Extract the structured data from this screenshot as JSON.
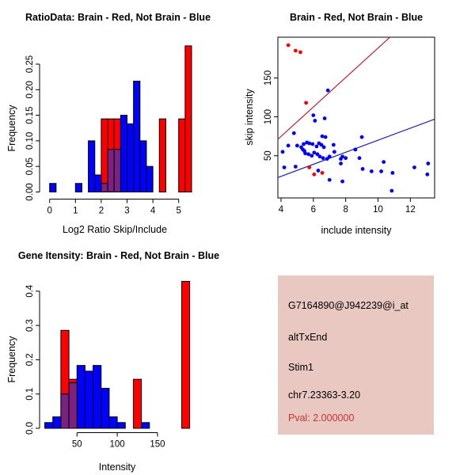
{
  "colors": {
    "red": "#FF0000",
    "blue": "#0000FF",
    "overlap_purple": "#7A2182",
    "red_line": "#C02030",
    "blue_line": "#2222AA",
    "axis": "#000000",
    "info_box_bg": "#EAC8C2",
    "pval_red": "#CC3333"
  },
  "chart_data": [
    {
      "id": "ratio_hist",
      "type": "bar",
      "title": "RatioData: Brain - Red, Not Brain - Blue",
      "xlabel": "Log2 Ratio Skip/Include",
      "ylabel": "Frequency",
      "xticks": [
        0,
        1,
        2,
        3,
        4,
        5
      ],
      "xtick_labels": [
        "0",
        "1",
        "2",
        "3",
        "4",
        "5"
      ],
      "yticks": [
        0,
        0.05,
        0.1,
        0.15,
        0.2,
        0.25
      ],
      "ytick_labels": [
        "0.00",
        "0.05",
        "0.10",
        "0.15",
        "0.20",
        "0.25"
      ],
      "xlim": [
        -0.2,
        5.7
      ],
      "ylim": [
        0,
        0.29
      ],
      "bin_width": 0.25,
      "legend": "Brain - Red, Not Brain - Blue",
      "series": [
        {
          "name": "Brain",
          "color": "red",
          "bars": [
            {
              "x": 2,
              "h": 0.1429
            },
            {
              "x": 2.25,
              "h": 0.1429
            },
            {
              "x": 2.5,
              "h": 0.1429
            },
            {
              "x": 4.25,
              "h": 0.1429
            },
            {
              "x": 5,
              "h": 0.1429
            },
            {
              "x": 5.25,
              "h": 0.2857
            }
          ]
        },
        {
          "name": "Not Brain",
          "color": "blue",
          "bars": [
            {
              "x": 0,
              "h": 0.0167
            },
            {
              "x": 1,
              "h": 0.0167
            },
            {
              "x": 1.5,
              "h": 0.1
            },
            {
              "x": 1.75,
              "h": 0.0333
            },
            {
              "x": 2,
              "h": 0.0167
            },
            {
              "x": 2.25,
              "h": 0.0833
            },
            {
              "x": 2.5,
              "h": 0.0833
            },
            {
              "x": 2.75,
              "h": 0.15
            },
            {
              "x": 3,
              "h": 0.1333
            },
            {
              "x": 3.25,
              "h": 0.2167
            },
            {
              "x": 3.5,
              "h": 0.1
            },
            {
              "x": 3.75,
              "h": 0.05
            }
          ]
        }
      ],
      "overlap_bars": [
        {
          "x": 2,
          "h": 0.0167
        },
        {
          "x": 2.25,
          "h": 0.0833
        },
        {
          "x": 2.5,
          "h": 0.0833
        }
      ]
    },
    {
      "id": "scatter",
      "type": "scatter",
      "title": "Brain - Red, Not Brain - Blue",
      "xlabel": "include intensity",
      "ylabel": "skip intensity",
      "xticks": [
        4,
        6,
        8,
        10,
        12
      ],
      "xtick_labels": [
        "4",
        "6",
        "8",
        "10",
        "12"
      ],
      "yticks": [
        50,
        100,
        150
      ],
      "ytick_labels": [
        "50",
        "100",
        "150"
      ],
      "xlim": [
        3.8,
        13.5
      ],
      "ylim": [
        -4,
        202
      ],
      "series": [
        {
          "name": "Not Brain",
          "color": "blue",
          "points": [
            [
              4.1,
              55
            ],
            [
              4.2,
              35
            ],
            [
              4.45,
              63
            ],
            [
              4.8,
              79
            ],
            [
              4.9,
              36
            ],
            [
              5.0,
              63
            ],
            [
              5.25,
              61
            ],
            [
              5.35,
              58
            ],
            [
              5.4,
              65
            ],
            [
              5.45,
              56
            ],
            [
              5.5,
              53
            ],
            [
              5.6,
              67
            ],
            [
              5.7,
              52
            ],
            [
              5.75,
              66
            ],
            [
              5.9,
              50
            ],
            [
              5.95,
              65
            ],
            [
              6.0,
              102
            ],
            [
              6.05,
              54
            ],
            [
              6.1,
              95
            ],
            [
              6.2,
              62
            ],
            [
              6.25,
              52
            ],
            [
              6.3,
              31
            ],
            [
              6.35,
              66
            ],
            [
              6.4,
              49
            ],
            [
              6.5,
              64
            ],
            [
              6.55,
              75
            ],
            [
              6.6,
              47
            ],
            [
              6.65,
              61
            ],
            [
              6.7,
              98
            ],
            [
              6.75,
              74
            ],
            [
              6.85,
              46
            ],
            [
              6.9,
              134
            ],
            [
              7.0,
              49
            ],
            [
              7.0,
              19
            ],
            [
              7.25,
              64
            ],
            [
              7.3,
              55
            ],
            [
              7.7,
              46
            ],
            [
              7.7,
              40
            ],
            [
              7.8,
              17
            ],
            [
              7.8,
              49
            ],
            [
              8.0,
              47
            ],
            [
              8.6,
              58
            ],
            [
              8.85,
              47
            ],
            [
              9.0,
              74
            ],
            [
              9.05,
              33
            ],
            [
              9.6,
              30
            ],
            [
              10.2,
              30
            ],
            [
              10.35,
              42
            ],
            [
              10.85,
              5
            ],
            [
              10.9,
              28
            ],
            [
              12.25,
              35
            ],
            [
              13.05,
              26
            ],
            [
              13.1,
              40
            ]
          ]
        },
        {
          "name": "Brain",
          "color": "red",
          "points": [
            [
              4.45,
              192
            ],
            [
              4.9,
              185
            ],
            [
              5.2,
              183
            ],
            [
              5.55,
              118
            ],
            [
              5.75,
              35
            ],
            [
              6.05,
              26
            ],
            [
              6.55,
              28
            ]
          ]
        }
      ],
      "lines": [
        {
          "name": "brain-fit",
          "color": "red_line",
          "x1": 3.8,
          "y1": 71,
          "x2": 10.72,
          "y2": 202
        },
        {
          "name": "notbrain-fit",
          "color": "blue_line",
          "x1": 3.8,
          "y1": 22,
          "x2": 13.5,
          "y2": 97
        }
      ]
    },
    {
      "id": "gene_hist",
      "type": "bar",
      "title": "Gene Itensity: Brain - Red, Not Brain - Blue",
      "xlabel": "Intensity",
      "ylabel": "Frequency",
      "xticks": [
        50,
        100,
        150
      ],
      "xtick_labels": [
        "50",
        "100",
        "150"
      ],
      "yticks": [
        0,
        0.1,
        0.2,
        0.3,
        0.4
      ],
      "ytick_labels": [
        "0.0",
        "0.1",
        "0.2",
        "0.3",
        "0.4"
      ],
      "xlim": [
        10,
        195
      ],
      "ylim": [
        0,
        0.44
      ],
      "bin_width": 10,
      "series": [
        {
          "name": "Brain",
          "color": "red",
          "bars": [
            {
              "x": 30,
              "h": 0.2857
            },
            {
              "x": 40,
              "h": 0.1429
            },
            {
              "x": 120,
              "h": 0.1429
            },
            {
              "x": 180,
              "h": 0.4286
            }
          ]
        },
        {
          "name": "Not Brain",
          "color": "blue",
          "bars": [
            {
              "x": 10,
              "h": 0.0167
            },
            {
              "x": 20,
              "h": 0.0333
            },
            {
              "x": 30,
              "h": 0.1
            },
            {
              "x": 40,
              "h": 0.1333
            },
            {
              "x": 50,
              "h": 0.1833
            },
            {
              "x": 60,
              "h": 0.1667
            },
            {
              "x": 70,
              "h": 0.1833
            },
            {
              "x": 80,
              "h": 0.1167
            },
            {
              "x": 90,
              "h": 0.0333
            },
            {
              "x": 100,
              "h": 0.0167
            },
            {
              "x": 130,
              "h": 0.0167
            }
          ]
        }
      ],
      "overlap_bars": [
        {
          "x": 30,
          "h": 0.1
        },
        {
          "x": 40,
          "h": 0.1333
        }
      ]
    }
  ],
  "info_box": {
    "lines": [
      {
        "text": "G7164890@J942239@i_at",
        "color": "#000000"
      },
      {
        "text": "altTxEnd",
        "color": "#000000"
      },
      {
        "text": "Stim1",
        "color": "#000000"
      },
      {
        "text": "chr7.23363-3.20",
        "color": "#000000"
      },
      {
        "text": "Pval: 2.000000",
        "color": "#CC3333"
      }
    ]
  }
}
